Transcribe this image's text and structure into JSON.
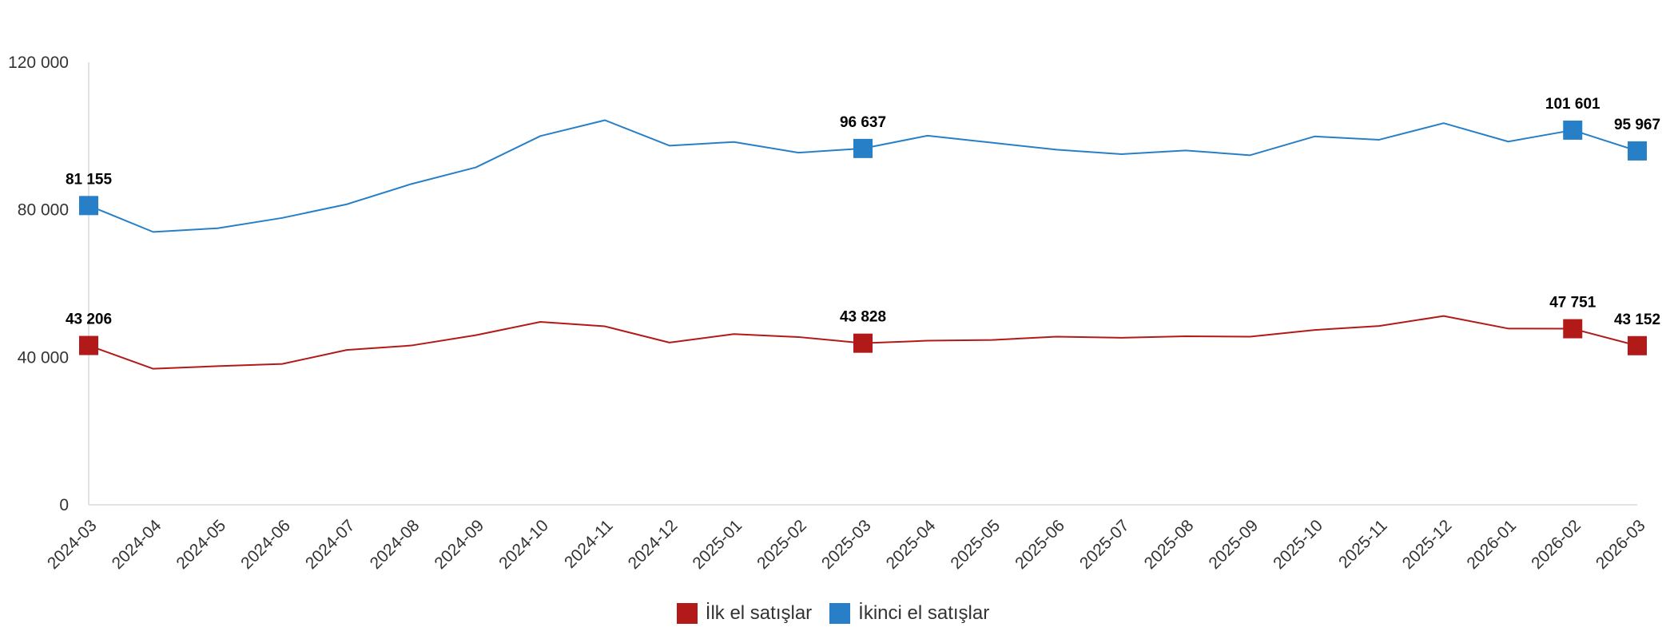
{
  "chart_data": {
    "type": "line",
    "title": "",
    "xlabel": "",
    "ylabel": "",
    "ylim": [
      0,
      120000
    ],
    "yticks": [
      0,
      40000,
      80000,
      120000
    ],
    "ytick_labels": [
      "0",
      "40 000",
      "80 000",
      "120 000"
    ],
    "grid": false,
    "legend_position": "bottom-center",
    "x": [
      "2024-03",
      "2024-04",
      "2024-05",
      "2024-06",
      "2024-07",
      "2024-08",
      "2024-09",
      "2024-10",
      "2024-11",
      "2024-12",
      "2025-01",
      "2025-02",
      "2025-03",
      "2025-04",
      "2025-05",
      "2025-06",
      "2025-07",
      "2025-08",
      "2025-09",
      "2025-10",
      "2025-11",
      "2025-12",
      "2026-01",
      "2026-02",
      "2026-03"
    ],
    "series": [
      {
        "name": "İlk el satışlar",
        "color": "#b21a1a",
        "values": [
          43206,
          36900,
          37600,
          38200,
          42000,
          43200,
          46000,
          49600,
          48400,
          44000,
          46300,
          45500,
          43828,
          44500,
          44700,
          45600,
          45300,
          45700,
          45600,
          47400,
          48500,
          51200,
          47800,
          47751,
          43152
        ],
        "labels": [
          {
            "index": 0,
            "text": "43 206"
          },
          {
            "index": 12,
            "text": "43 828"
          },
          {
            "index": 23,
            "text": "47 751"
          },
          {
            "index": 24,
            "text": "43 152"
          }
        ]
      },
      {
        "name": "İkinci el satışlar",
        "color": "#2780c7",
        "values": [
          81155,
          74000,
          75000,
          77800,
          81500,
          87000,
          91500,
          100000,
          104300,
          97400,
          98400,
          95500,
          96637,
          100100,
          98200,
          96300,
          95100,
          96100,
          94800,
          99900,
          99000,
          103500,
          98500,
          101601,
          95967
        ],
        "labels": [
          {
            "index": 0,
            "text": "81 155"
          },
          {
            "index": 12,
            "text": "96 637"
          },
          {
            "index": 23,
            "text": "101 601"
          },
          {
            "index": 24,
            "text": "95 967"
          }
        ]
      }
    ]
  }
}
